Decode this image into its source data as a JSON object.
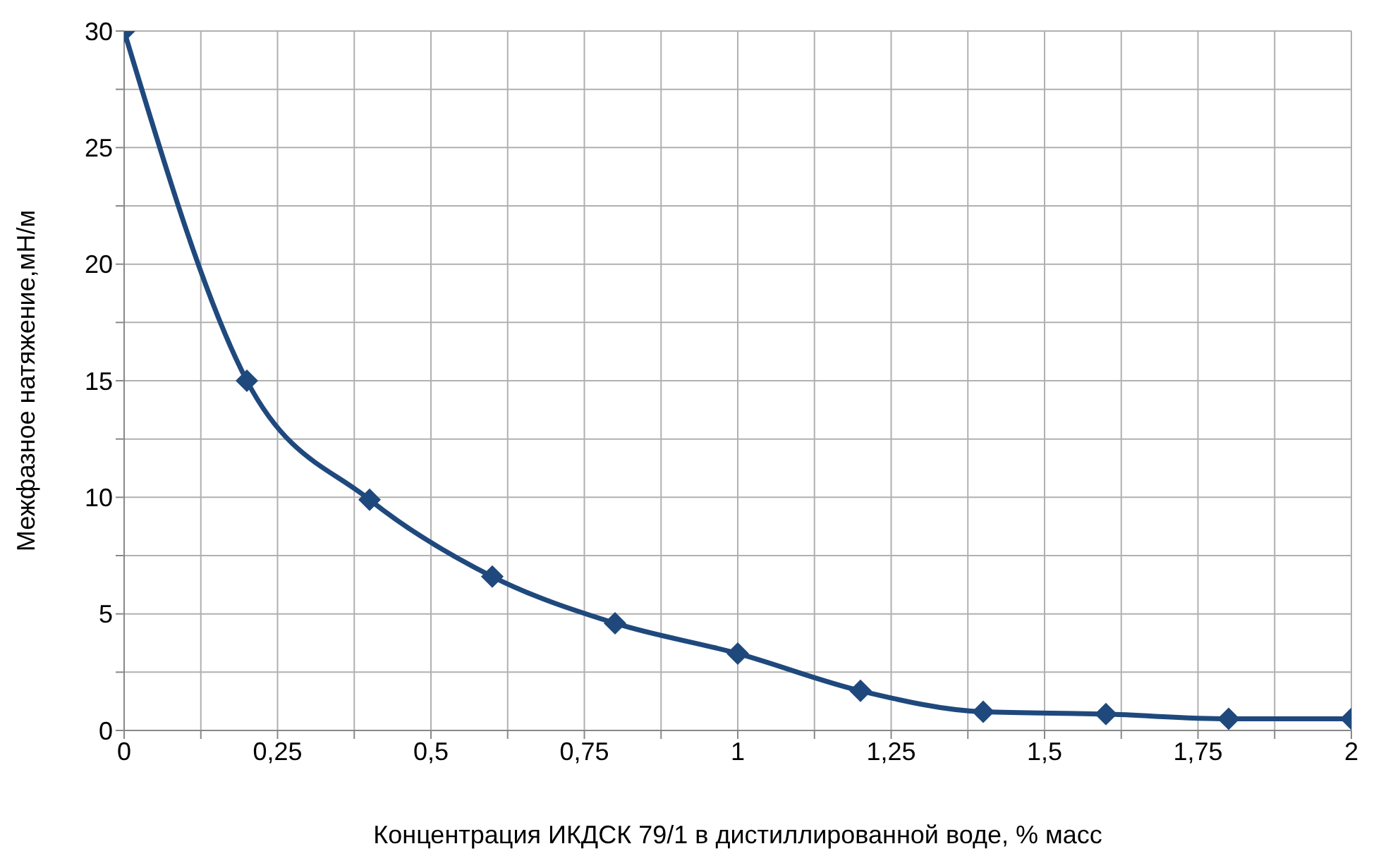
{
  "chart_data": {
    "type": "line",
    "xlabel": "Концентрация ИКДСК 79/1 в дистиллированной  воде, % масс",
    "ylabel": "Межфазное натяжение,мН/м",
    "x": [
      0,
      0.2,
      0.4,
      0.6,
      0.8,
      1,
      1.2,
      1.4,
      1.6,
      1.8,
      2
    ],
    "series": [
      {
        "color": "#1f497d",
        "values": [
          30,
          15,
          9.9,
          6.6,
          4.6,
          3.3,
          1.7,
          0.8,
          0.7,
          0.5,
          0.5
        ]
      }
    ],
    "xlim": [
      0,
      2
    ],
    "xticks": [
      0,
      {
        "value": 0.125,
        "label": null
      },
      {
        "value": 0.25,
        "label": "0,25"
      },
      {
        "value": 0.375,
        "label": null
      },
      {
        "value": 0.5,
        "label": "0,5"
      },
      {
        "value": 0.625,
        "label": null
      },
      {
        "value": 0.75,
        "label": "0,75"
      },
      {
        "value": 0.875,
        "label": null
      },
      1,
      {
        "value": 1.125,
        "label": null
      },
      {
        "value": 1.25,
        "label": "1,25"
      },
      {
        "value": 1.375,
        "label": null
      },
      {
        "value": 1.5,
        "label": "1,5"
      },
      {
        "value": 1.625,
        "label": null
      },
      {
        "value": 1.75,
        "label": "1,75"
      },
      {
        "value": 1.875,
        "label": null
      },
      2
    ],
    "ylim": [
      0,
      30
    ],
    "yticks": [
      0,
      {
        "value": 2.5,
        "label": null
      },
      5,
      {
        "value": 7.5,
        "label": null
      },
      10,
      {
        "value": 12.5,
        "label": null
      },
      15,
      {
        "value": 17.5,
        "label": null
      },
      20,
      {
        "value": 22.5,
        "label": null
      },
      25,
      {
        "value": 27.5,
        "label": null
      },
      30
    ],
    "grid": true,
    "marker": "diamond",
    "line_style": "solid",
    "legend": false
  }
}
